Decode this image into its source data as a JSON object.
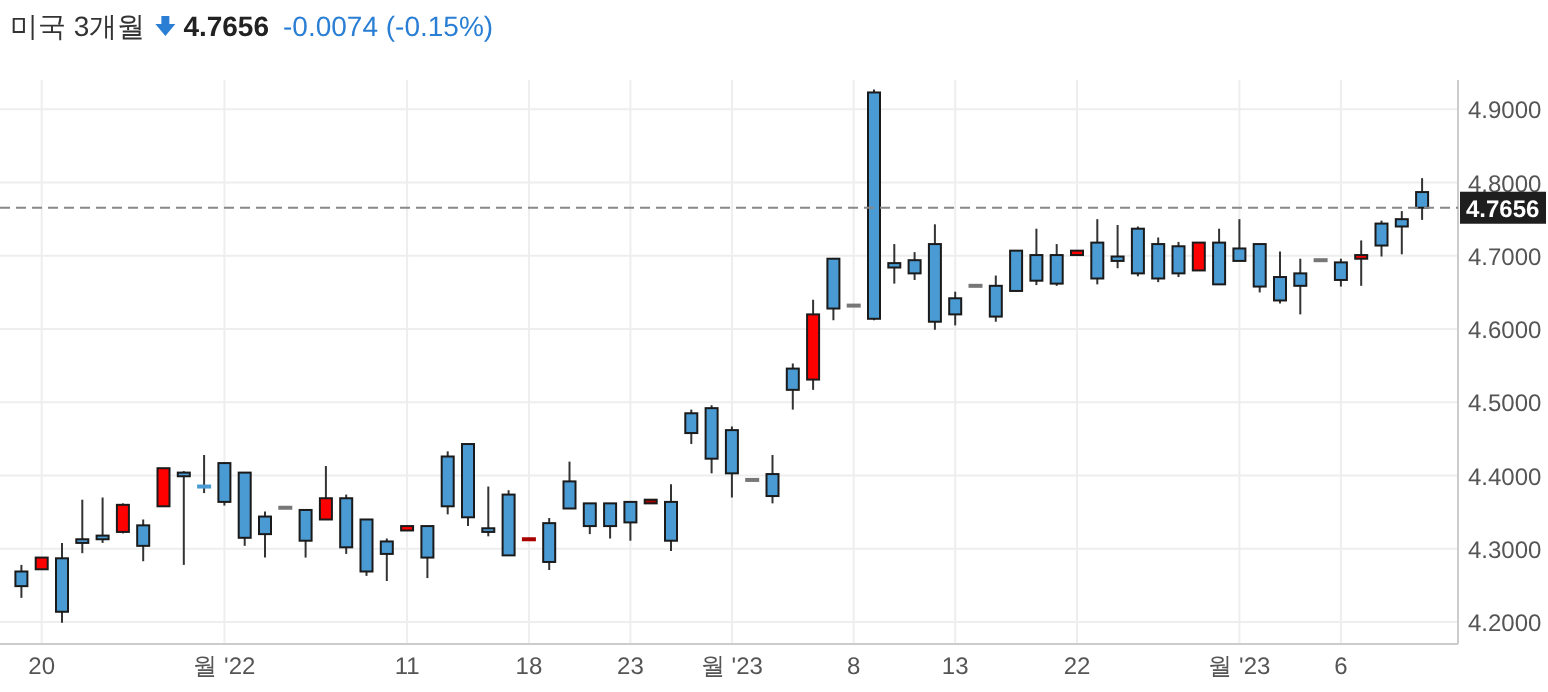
{
  "chart_data": {
    "type": "candlestick",
    "title": "미국 3개월",
    "annotations": [
      "4.7656",
      "-0.0074 (-0.15%)"
    ],
    "categories": [
      null,
      "20",
      null,
      null,
      null,
      null,
      null,
      null,
      null,
      null,
      "월 '22",
      null,
      null,
      null,
      null,
      null,
      null,
      null,
      null,
      "11",
      null,
      null,
      null,
      null,
      null,
      "18",
      null,
      null,
      null,
      null,
      "23",
      null,
      null,
      null,
      null,
      "월 '23",
      null,
      null,
      null,
      null,
      null,
      "8",
      null,
      null,
      null,
      null,
      "13",
      null,
      null,
      null,
      null,
      null,
      "22",
      null,
      null,
      null,
      null,
      null,
      null,
      null,
      "월 '23",
      null,
      null,
      null,
      null,
      "6",
      null,
      null,
      null,
      null
    ],
    "ohlc": [
      [
        4.269,
        4.278,
        4.233,
        4.249
      ],
      [
        4.272,
        4.288,
        4.272,
        4.288
      ],
      [
        4.287,
        4.308,
        4.199,
        4.214
      ],
      [
        4.313,
        4.367,
        4.294,
        4.308
      ],
      [
        4.318,
        4.37,
        4.308,
        4.313
      ],
      [
        4.323,
        4.362,
        4.321,
        4.36
      ],
      [
        4.332,
        4.34,
        4.283,
        4.304
      ],
      [
        4.358,
        4.41,
        4.358,
        4.41
      ],
      [
        4.404,
        4.406,
        4.278,
        4.399
      ],
      [
        4.387,
        4.428,
        4.376,
        4.383
      ],
      [
        4.417,
        4.418,
        4.359,
        4.364
      ],
      [
        4.404,
        4.404,
        4.304,
        4.315
      ],
      [
        4.344,
        4.351,
        4.288,
        4.32
      ],
      [
        4.356,
        4.356,
        4.356,
        4.356
      ],
      [
        4.353,
        4.353,
        4.288,
        4.311
      ],
      [
        4.34,
        4.413,
        4.34,
        4.369
      ],
      [
        4.369,
        4.374,
        4.293,
        4.302
      ],
      [
        4.34,
        4.34,
        4.263,
        4.269
      ],
      [
        4.31,
        4.314,
        4.256,
        4.293
      ],
      [
        4.325,
        4.331,
        4.325,
        4.331
      ],
      [
        4.331,
        4.331,
        4.26,
        4.288
      ],
      [
        4.426,
        4.433,
        4.347,
        4.358
      ],
      [
        4.443,
        4.443,
        4.331,
        4.343
      ],
      [
        4.328,
        4.385,
        4.317,
        4.323
      ],
      [
        4.374,
        4.38,
        4.291,
        4.291
      ],
      [
        4.311,
        4.315,
        4.311,
        4.315
      ],
      [
        4.335,
        4.342,
        4.271,
        4.282
      ],
      [
        4.392,
        4.419,
        4.355,
        4.355
      ],
      [
        4.362,
        4.362,
        4.32,
        4.331
      ],
      [
        4.362,
        4.362,
        4.314,
        4.331
      ],
      [
        4.364,
        4.364,
        4.311,
        4.336
      ],
      [
        4.362,
        4.367,
        4.362,
        4.367
      ],
      [
        4.364,
        4.388,
        4.297,
        4.311
      ],
      [
        4.485,
        4.49,
        4.443,
        4.458
      ],
      [
        4.492,
        4.496,
        4.403,
        4.423
      ],
      [
        4.462,
        4.467,
        4.37,
        4.403
      ],
      [
        4.394,
        4.394,
        4.394,
        4.394
      ],
      [
        4.402,
        4.428,
        4.362,
        4.372
      ],
      [
        4.546,
        4.553,
        4.49,
        4.517
      ],
      [
        4.531,
        4.64,
        4.517,
        4.62
      ],
      [
        4.696,
        4.696,
        4.612,
        4.628
      ],
      [
        4.632,
        4.632,
        4.632,
        4.632
      ],
      [
        4.923,
        4.927,
        4.612,
        4.614
      ],
      [
        4.69,
        4.716,
        4.662,
        4.684
      ],
      [
        4.694,
        4.705,
        4.667,
        4.676
      ],
      [
        4.716,
        4.743,
        4.599,
        4.61
      ],
      [
        4.642,
        4.651,
        4.605,
        4.62
      ],
      [
        4.659,
        4.659,
        4.659,
        4.659
      ],
      [
        4.659,
        4.673,
        4.61,
        4.617
      ],
      [
        4.707,
        4.707,
        4.651,
        4.652
      ],
      [
        4.701,
        4.737,
        4.66,
        4.666
      ],
      [
        4.701,
        4.716,
        4.659,
        4.662
      ],
      [
        4.701,
        4.707,
        4.701,
        4.707
      ],
      [
        4.718,
        4.75,
        4.661,
        4.669
      ],
      [
        4.699,
        4.742,
        4.683,
        4.693
      ],
      [
        4.737,
        4.74,
        4.672,
        4.676
      ],
      [
        4.716,
        4.725,
        4.664,
        4.669
      ],
      [
        4.713,
        4.719,
        4.671,
        4.676
      ],
      [
        4.68,
        4.718,
        4.68,
        4.718
      ],
      [
        4.718,
        4.737,
        4.661,
        4.661
      ],
      [
        4.71,
        4.75,
        4.693,
        4.693
      ],
      [
        4.716,
        4.716,
        4.65,
        4.658
      ],
      [
        4.671,
        4.706,
        4.635,
        4.639
      ],
      [
        4.676,
        4.696,
        4.62,
        4.659
      ],
      [
        4.694,
        4.694,
        4.694,
        4.694
      ],
      [
        4.691,
        4.696,
        4.658,
        4.667
      ],
      [
        4.696,
        4.721,
        4.659,
        4.701
      ],
      [
        4.744,
        4.748,
        4.699,
        4.714
      ],
      [
        4.75,
        4.761,
        4.702,
        4.74
      ],
      [
        4.787,
        4.806,
        4.749,
        4.7656
      ]
    ],
    "colors": [
      "#4a9bd4",
      "#ff0000",
      "#4a9bd4",
      "#4a9bd4",
      "#4a9bd4",
      "#ff0000",
      "#4a9bd4",
      "#ff0000",
      "#4a9bd4",
      "#4a9bd4",
      "#4a9bd4",
      "#4a9bd4",
      "#4a9bd4",
      "#777777",
      "#4a9bd4",
      "#ff0000",
      "#4a9bd4",
      "#4a9bd4",
      "#4a9bd4",
      "#ff0000",
      "#4a9bd4",
      "#4a9bd4",
      "#4a9bd4",
      "#4a9bd4",
      "#4a9bd4",
      "#aa0000",
      "#4a9bd4",
      "#4a9bd4",
      "#4a9bd4",
      "#4a9bd4",
      "#4a9bd4",
      "#aa0000",
      "#4a9bd4",
      "#4a9bd4",
      "#4a9bd4",
      "#4a9bd4",
      "#777777",
      "#4a9bd4",
      "#4a9bd4",
      "#ff0000",
      "#4a9bd4",
      "#777777",
      "#4a9bd4",
      "#4a9bd4",
      "#4a9bd4",
      "#4a9bd4",
      "#4a9bd4",
      "#777777",
      "#4a9bd4",
      "#4a9bd4",
      "#4a9bd4",
      "#4a9bd4",
      "#ff0000",
      "#4a9bd4",
      "#4a9bd4",
      "#4a9bd4",
      "#4a9bd4",
      "#4a9bd4",
      "#ff0000",
      "#4a9bd4",
      "#4a9bd4",
      "#4a9bd4",
      "#4a9bd4",
      "#4a9bd4",
      "#777777",
      "#4a9bd4",
      "#ff0000",
      "#4a9bd4",
      "#4a9bd4",
      "#4a9bd4"
    ],
    "ylim": [
      4.17,
      4.94
    ],
    "yticks": [
      {
        "value": 4.2,
        "label": "4.2000"
      },
      {
        "value": 4.3,
        "label": "4.3000"
      },
      {
        "value": 4.4,
        "label": "4.4000"
      },
      {
        "value": 4.5,
        "label": "4.5000"
      },
      {
        "value": 4.6,
        "label": "4.6000"
      },
      {
        "value": 4.7,
        "label": "4.7000"
      },
      {
        "value": 4.8,
        "label": "4.8000"
      },
      {
        "value": 4.9,
        "label": "4.9000"
      }
    ],
    "ref_lines": [
      {
        "axis": "y",
        "value": 4.7656,
        "label": "4.7656",
        "color": "#888888",
        "line_style": "dashed"
      }
    ],
    "grid": true
  }
}
